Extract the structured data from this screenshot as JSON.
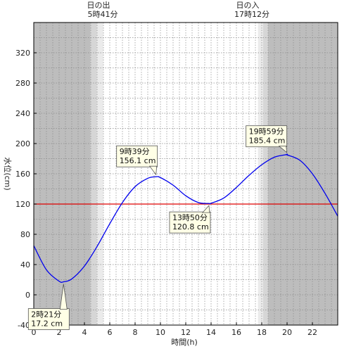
{
  "chart_data": {
    "type": "line",
    "xlabel": "時間(h)",
    "ylabel": "水位(cm)",
    "xlim": [
      0,
      24
    ],
    "ylim": [
      -40,
      360
    ],
    "xticks": [
      0,
      2,
      4,
      6,
      8,
      10,
      12,
      14,
      16,
      18,
      20,
      22
    ],
    "yticks": [
      -40,
      0,
      40,
      80,
      120,
      160,
      200,
      240,
      280,
      320
    ],
    "grid": true,
    "sun": {
      "sunrise": {
        "label": "日の出",
        "time": "5時41分",
        "hour": 5.683
      },
      "sunset": {
        "label": "日の入",
        "time": "17時12分",
        "hour": 17.2
      }
    },
    "reference_line": {
      "value": 120,
      "color": "#e00000"
    },
    "series": [
      {
        "color": "#0000ee",
        "x": [
          0,
          1,
          2,
          2.35,
          3,
          4,
          5,
          6,
          7,
          8,
          9,
          9.65,
          10,
          11,
          12,
          13,
          13.83,
          14,
          15,
          16,
          17,
          18,
          19,
          19.98,
          20,
          21,
          22,
          23,
          24
        ],
        "y": [
          65,
          33,
          18,
          17.2,
          21,
          38,
          64,
          94,
          122,
          143,
          154,
          156.1,
          155,
          145,
          131,
          122,
          120.8,
          121,
          128,
          142,
          158,
          172,
          182,
          185.4,
          185,
          178,
          160,
          134,
          104
        ]
      }
    ],
    "annotations": [
      {
        "time": "2時21分",
        "value": "17.2 cm",
        "x": 2.35,
        "y": 17.2
      },
      {
        "time": "9時39分",
        "value": "156.1 cm",
        "x": 9.65,
        "y": 156.1
      },
      {
        "time": "13時50分",
        "value": "120.8 cm",
        "x": 13.83,
        "y": 120.8
      },
      {
        "time": "19時59分",
        "value": "185.4 cm",
        "x": 19.98,
        "y": 185.4
      }
    ],
    "colors": {
      "night": "#bdbdbd",
      "twilight_dark": "#d6d6d6",
      "twilight_light": "#ebebeb",
      "day": "#ffffff",
      "callout_fill": "#ffffe6",
      "frame": "#000000"
    }
  }
}
